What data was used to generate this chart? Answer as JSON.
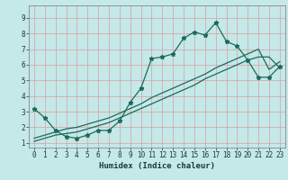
{
  "xlabel": "Humidex (Indice chaleur)",
  "bg_color": "#c5e8e8",
  "grid_color": "#d9a0a0",
  "line_color": "#1a6b5a",
  "xlim": [
    -0.5,
    23.5
  ],
  "ylim": [
    0.7,
    9.8
  ],
  "xticks": [
    0,
    1,
    2,
    3,
    4,
    5,
    6,
    7,
    8,
    9,
    10,
    11,
    12,
    13,
    14,
    15,
    16,
    17,
    18,
    19,
    20,
    21,
    22,
    23
  ],
  "yticks": [
    1,
    2,
    3,
    4,
    5,
    6,
    7,
    8,
    9
  ],
  "line1_x": [
    0,
    1,
    2,
    3,
    4,
    5,
    6,
    7,
    8,
    9,
    10,
    11,
    12,
    13,
    14,
    15,
    16,
    17,
    18,
    19,
    20,
    21,
    22,
    23
  ],
  "line1_y": [
    3.2,
    2.6,
    1.8,
    1.4,
    1.3,
    1.5,
    1.8,
    1.8,
    2.4,
    3.6,
    4.5,
    6.4,
    6.5,
    6.7,
    7.7,
    8.1,
    7.9,
    8.7,
    7.5,
    7.2,
    6.3,
    5.2,
    5.2,
    5.9
  ],
  "line2_x": [
    0,
    1,
    2,
    3,
    4,
    5,
    6,
    7,
    8,
    9,
    10,
    11,
    12,
    13,
    14,
    15,
    16,
    17,
    18,
    19,
    20,
    21,
    22,
    23
  ],
  "line2_y": [
    1.1,
    1.3,
    1.5,
    1.6,
    1.7,
    1.9,
    2.1,
    2.3,
    2.6,
    2.9,
    3.2,
    3.5,
    3.8,
    4.1,
    4.4,
    4.7,
    5.1,
    5.4,
    5.7,
    6.0,
    6.3,
    6.5,
    6.5,
    5.8
  ],
  "line3_x": [
    0,
    1,
    2,
    3,
    4,
    5,
    6,
    7,
    8,
    9,
    10,
    11,
    12,
    13,
    14,
    15,
    16,
    17,
    18,
    19,
    20,
    21,
    22,
    23
  ],
  "line3_y": [
    1.3,
    1.5,
    1.7,
    1.9,
    2.0,
    2.2,
    2.4,
    2.6,
    2.9,
    3.2,
    3.5,
    3.9,
    4.2,
    4.5,
    4.8,
    5.1,
    5.4,
    5.8,
    6.1,
    6.4,
    6.7,
    7.0,
    5.7,
    6.2
  ]
}
